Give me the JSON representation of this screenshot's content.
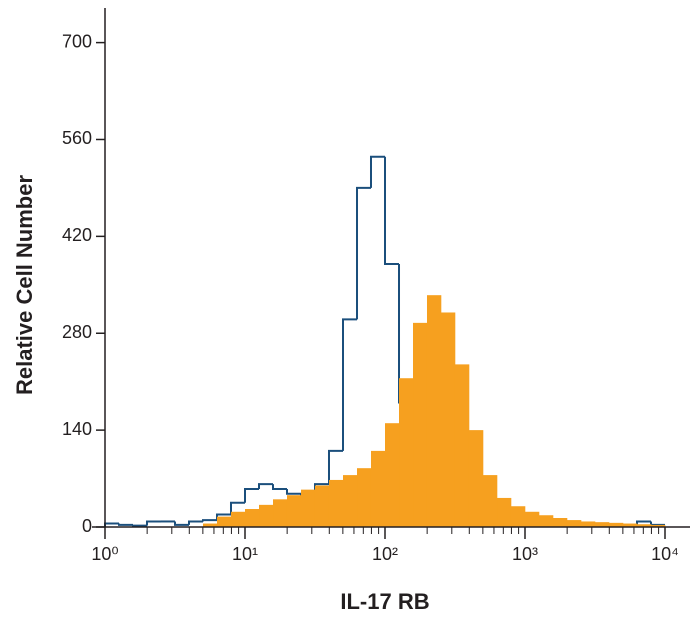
{
  "chart_data": {
    "type": "histogram",
    "x_label": "IL-17 RB",
    "y_label": "Relative Cell Number",
    "xscale": "log",
    "xlim": [
      1,
      10000
    ],
    "ylim": [
      0,
      750
    ],
    "yticks": [
      0,
      140,
      280,
      420,
      560,
      700
    ],
    "xticks": [
      {
        "value": 1,
        "label": "10⁰"
      },
      {
        "value": 10,
        "label": "10¹"
      },
      {
        "value": 100,
        "label": "10²"
      },
      {
        "value": 1000,
        "label": "10³"
      },
      {
        "value": 10000,
        "label": "10⁴"
      }
    ],
    "xminorticks": [
      2,
      3,
      4,
      5,
      6,
      7,
      8,
      9,
      20,
      30,
      40,
      50,
      60,
      70,
      80,
      90,
      200,
      300,
      400,
      500,
      600,
      700,
      800,
      900,
      2000,
      3000,
      4000,
      5000,
      6000,
      7000,
      8000,
      9000
    ],
    "bins": [
      1,
      1.259,
      1.585,
      1.995,
      2.512,
      3.162,
      3.981,
      5.012,
      6.31,
      7.943,
      10,
      12.59,
      15.85,
      19.95,
      25.12,
      31.62,
      39.81,
      50.12,
      63.1,
      79.43,
      100,
      125.9,
      158.5,
      199.5,
      251.2,
      316.2,
      398.1,
      501.2,
      631,
      794.3,
      1000,
      1259,
      1585,
      1995,
      2512,
      3162,
      3981,
      5012,
      6310,
      7943,
      10000
    ],
    "series": [
      {
        "color": "#1b4f7c",
        "style": "outline",
        "values": [
          5,
          3,
          2,
          8,
          8,
          3,
          8,
          10,
          18,
          35,
          55,
          62,
          55,
          48,
          47,
          62,
          110,
          300,
          490,
          535,
          380,
          180,
          60,
          20,
          8,
          3,
          2,
          1,
          1,
          1,
          1,
          1,
          1,
          1,
          1,
          1,
          2,
          2,
          8,
          3
        ]
      },
      {
        "color": "#f6a01f",
        "style": "filled",
        "values": [
          0,
          0,
          0,
          0,
          0,
          0,
          0,
          5,
          15,
          22,
          26,
          32,
          40,
          46,
          54,
          60,
          68,
          75,
          85,
          110,
          150,
          215,
          295,
          335,
          310,
          235,
          140,
          75,
          42,
          30,
          22,
          17,
          13,
          10,
          8,
          7,
          6,
          5,
          4,
          3
        ]
      }
    ]
  }
}
